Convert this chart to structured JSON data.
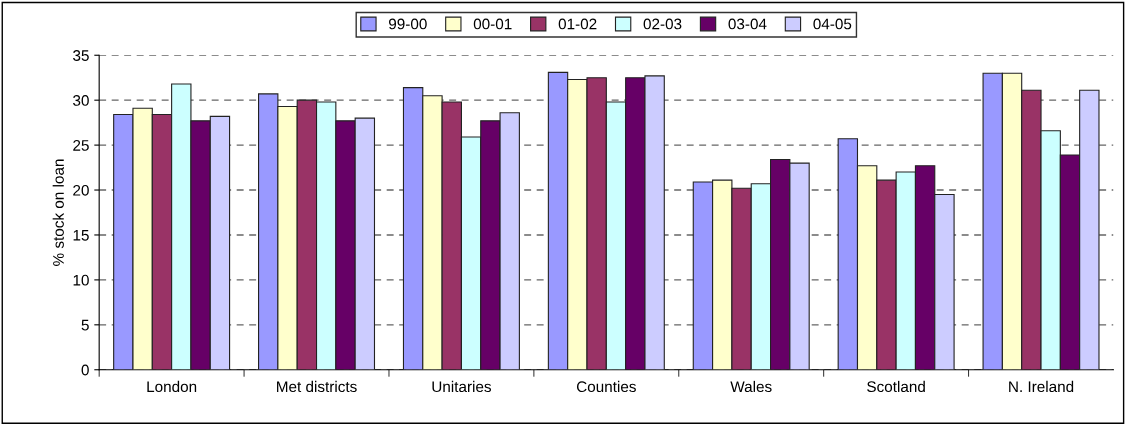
{
  "chart_data": {
    "type": "bar",
    "ylabel": "% stock on loan",
    "categories": [
      "London",
      "Met districts",
      "Unitaries",
      "Counties",
      "Wales",
      "Scotland",
      "N. Ireland"
    ],
    "series": [
      {
        "name": "99-00",
        "color": "#9999ff",
        "values": [
          28.4,
          30.7,
          31.4,
          33.1,
          20.9,
          25.7,
          33.0
        ]
      },
      {
        "name": "00-01",
        "color": "#ffffcc",
        "values": [
          29.1,
          29.3,
          30.5,
          32.3,
          21.1,
          22.7,
          33.0
        ]
      },
      {
        "name": "01-02",
        "color": "#993366",
        "values": [
          28.4,
          30.0,
          29.8,
          32.5,
          20.2,
          21.1,
          31.1
        ]
      },
      {
        "name": "02-03",
        "color": "#ccffff",
        "values": [
          31.8,
          29.8,
          25.9,
          29.8,
          20.7,
          22.0,
          26.6
        ]
      },
      {
        "name": "03-04",
        "color": "#660066",
        "values": [
          27.7,
          27.7,
          27.7,
          32.5,
          23.4,
          22.7,
          23.9
        ]
      },
      {
        "name": "04-05",
        "color": "#ccccff",
        "values": [
          28.2,
          28.0,
          28.6,
          32.7,
          23.0,
          19.5,
          31.1
        ]
      }
    ],
    "ylim": [
      0,
      35
    ],
    "yticks": [
      0,
      5,
      10,
      15,
      20,
      25,
      30,
      35
    ],
    "grid": "y",
    "legend": "top"
  }
}
